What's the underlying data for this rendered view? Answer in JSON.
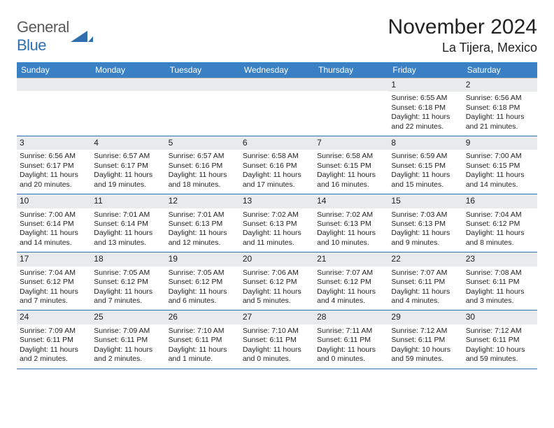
{
  "logo": {
    "text_a": "General",
    "text_b": "Blue"
  },
  "title": "November 2024",
  "location": "La Tijera, Mexico",
  "colors": {
    "header_bg": "#3a80c4",
    "header_fg": "#ffffff",
    "daynum_bg": "#e9eaec",
    "row_border": "#2f6fb0",
    "page_bg": "#ffffff",
    "text": "#222222",
    "logo_gray": "#5a5a5a",
    "logo_blue": "#2f6fb0"
  },
  "weekdays": [
    "Sunday",
    "Monday",
    "Tuesday",
    "Wednesday",
    "Thursday",
    "Friday",
    "Saturday"
  ],
  "days": [
    {
      "n": 1,
      "sunrise": "6:55 AM",
      "sunset": "6:18 PM",
      "daylight": "11 hours and 22 minutes."
    },
    {
      "n": 2,
      "sunrise": "6:56 AM",
      "sunset": "6:18 PM",
      "daylight": "11 hours and 21 minutes."
    },
    {
      "n": 3,
      "sunrise": "6:56 AM",
      "sunset": "6:17 PM",
      "daylight": "11 hours and 20 minutes."
    },
    {
      "n": 4,
      "sunrise": "6:57 AM",
      "sunset": "6:17 PM",
      "daylight": "11 hours and 19 minutes."
    },
    {
      "n": 5,
      "sunrise": "6:57 AM",
      "sunset": "6:16 PM",
      "daylight": "11 hours and 18 minutes."
    },
    {
      "n": 6,
      "sunrise": "6:58 AM",
      "sunset": "6:16 PM",
      "daylight": "11 hours and 17 minutes."
    },
    {
      "n": 7,
      "sunrise": "6:58 AM",
      "sunset": "6:15 PM",
      "daylight": "11 hours and 16 minutes."
    },
    {
      "n": 8,
      "sunrise": "6:59 AM",
      "sunset": "6:15 PM",
      "daylight": "11 hours and 15 minutes."
    },
    {
      "n": 9,
      "sunrise": "7:00 AM",
      "sunset": "6:15 PM",
      "daylight": "11 hours and 14 minutes."
    },
    {
      "n": 10,
      "sunrise": "7:00 AM",
      "sunset": "6:14 PM",
      "daylight": "11 hours and 14 minutes."
    },
    {
      "n": 11,
      "sunrise": "7:01 AM",
      "sunset": "6:14 PM",
      "daylight": "11 hours and 13 minutes."
    },
    {
      "n": 12,
      "sunrise": "7:01 AM",
      "sunset": "6:13 PM",
      "daylight": "11 hours and 12 minutes."
    },
    {
      "n": 13,
      "sunrise": "7:02 AM",
      "sunset": "6:13 PM",
      "daylight": "11 hours and 11 minutes."
    },
    {
      "n": 14,
      "sunrise": "7:02 AM",
      "sunset": "6:13 PM",
      "daylight": "11 hours and 10 minutes."
    },
    {
      "n": 15,
      "sunrise": "7:03 AM",
      "sunset": "6:13 PM",
      "daylight": "11 hours and 9 minutes."
    },
    {
      "n": 16,
      "sunrise": "7:04 AM",
      "sunset": "6:12 PM",
      "daylight": "11 hours and 8 minutes."
    },
    {
      "n": 17,
      "sunrise": "7:04 AM",
      "sunset": "6:12 PM",
      "daylight": "11 hours and 7 minutes."
    },
    {
      "n": 18,
      "sunrise": "7:05 AM",
      "sunset": "6:12 PM",
      "daylight": "11 hours and 7 minutes."
    },
    {
      "n": 19,
      "sunrise": "7:05 AM",
      "sunset": "6:12 PM",
      "daylight": "11 hours and 6 minutes."
    },
    {
      "n": 20,
      "sunrise": "7:06 AM",
      "sunset": "6:12 PM",
      "daylight": "11 hours and 5 minutes."
    },
    {
      "n": 21,
      "sunrise": "7:07 AM",
      "sunset": "6:12 PM",
      "daylight": "11 hours and 4 minutes."
    },
    {
      "n": 22,
      "sunrise": "7:07 AM",
      "sunset": "6:11 PM",
      "daylight": "11 hours and 4 minutes."
    },
    {
      "n": 23,
      "sunrise": "7:08 AM",
      "sunset": "6:11 PM",
      "daylight": "11 hours and 3 minutes."
    },
    {
      "n": 24,
      "sunrise": "7:09 AM",
      "sunset": "6:11 PM",
      "daylight": "11 hours and 2 minutes."
    },
    {
      "n": 25,
      "sunrise": "7:09 AM",
      "sunset": "6:11 PM",
      "daylight": "11 hours and 2 minutes."
    },
    {
      "n": 26,
      "sunrise": "7:10 AM",
      "sunset": "6:11 PM",
      "daylight": "11 hours and 1 minute."
    },
    {
      "n": 27,
      "sunrise": "7:10 AM",
      "sunset": "6:11 PM",
      "daylight": "11 hours and 0 minutes."
    },
    {
      "n": 28,
      "sunrise": "7:11 AM",
      "sunset": "6:11 PM",
      "daylight": "11 hours and 0 minutes."
    },
    {
      "n": 29,
      "sunrise": "7:12 AM",
      "sunset": "6:11 PM",
      "daylight": "10 hours and 59 minutes."
    },
    {
      "n": 30,
      "sunrise": "7:12 AM",
      "sunset": "6:11 PM",
      "daylight": "10 hours and 59 minutes."
    }
  ],
  "labels": {
    "sunrise": "Sunrise: ",
    "sunset": "Sunset: ",
    "daylight": "Daylight: "
  },
  "layout": {
    "blanks_before": 5,
    "columns": 7
  }
}
